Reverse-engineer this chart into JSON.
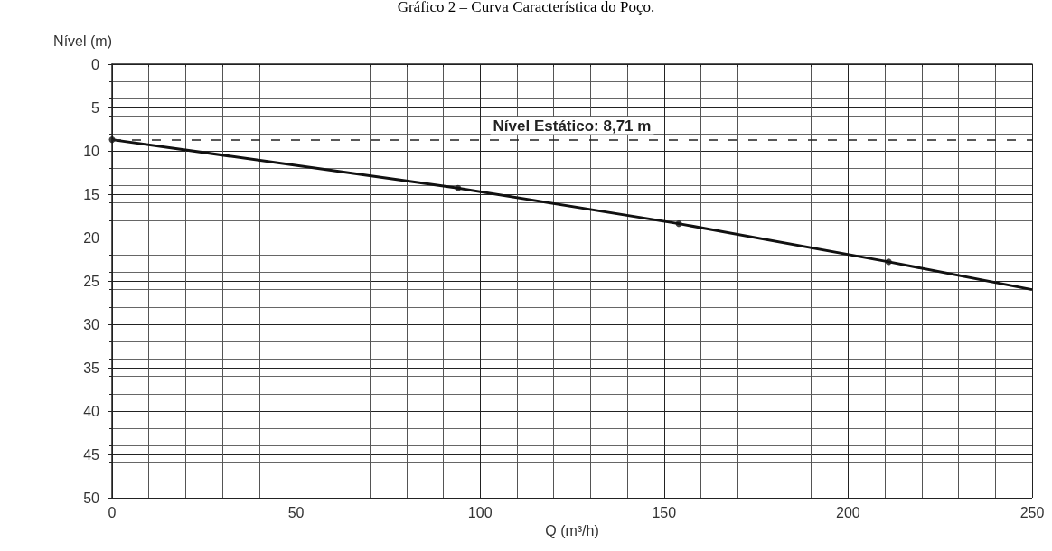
{
  "chart_data": {
    "type": "line",
    "title": "Gráfico 2 – Curva Característica do Poço.",
    "xlabel": "Q (m³/h)",
    "ylabel": "Nível (m)",
    "series": [
      {
        "color": "#111111",
        "x": [
          0,
          94,
          154,
          211,
          250
        ],
        "values": [
          8.71,
          14.3,
          18.4,
          22.8,
          26.0
        ],
        "marker": "none"
      },
      {
        "type": "scatter",
        "color": "#111111",
        "x": [
          0,
          94,
          154,
          211
        ],
        "values": [
          8.71,
          14.3,
          18.4,
          22.8
        ],
        "marker": "circle"
      }
    ],
    "xlim": [
      0,
      250
    ],
    "xticks": [
      0,
      50,
      100,
      150,
      200,
      250
    ],
    "ylim": [
      50,
      0
    ],
    "yticks": [
      0,
      5,
      10,
      15,
      20,
      25,
      30,
      35,
      40,
      45,
      50
    ],
    "ref_lines": [
      {
        "axis": "y",
        "value": 8.71,
        "label": "Nível Estático: 8,71 m",
        "line_style": "dashed"
      }
    ],
    "grid": true
  }
}
